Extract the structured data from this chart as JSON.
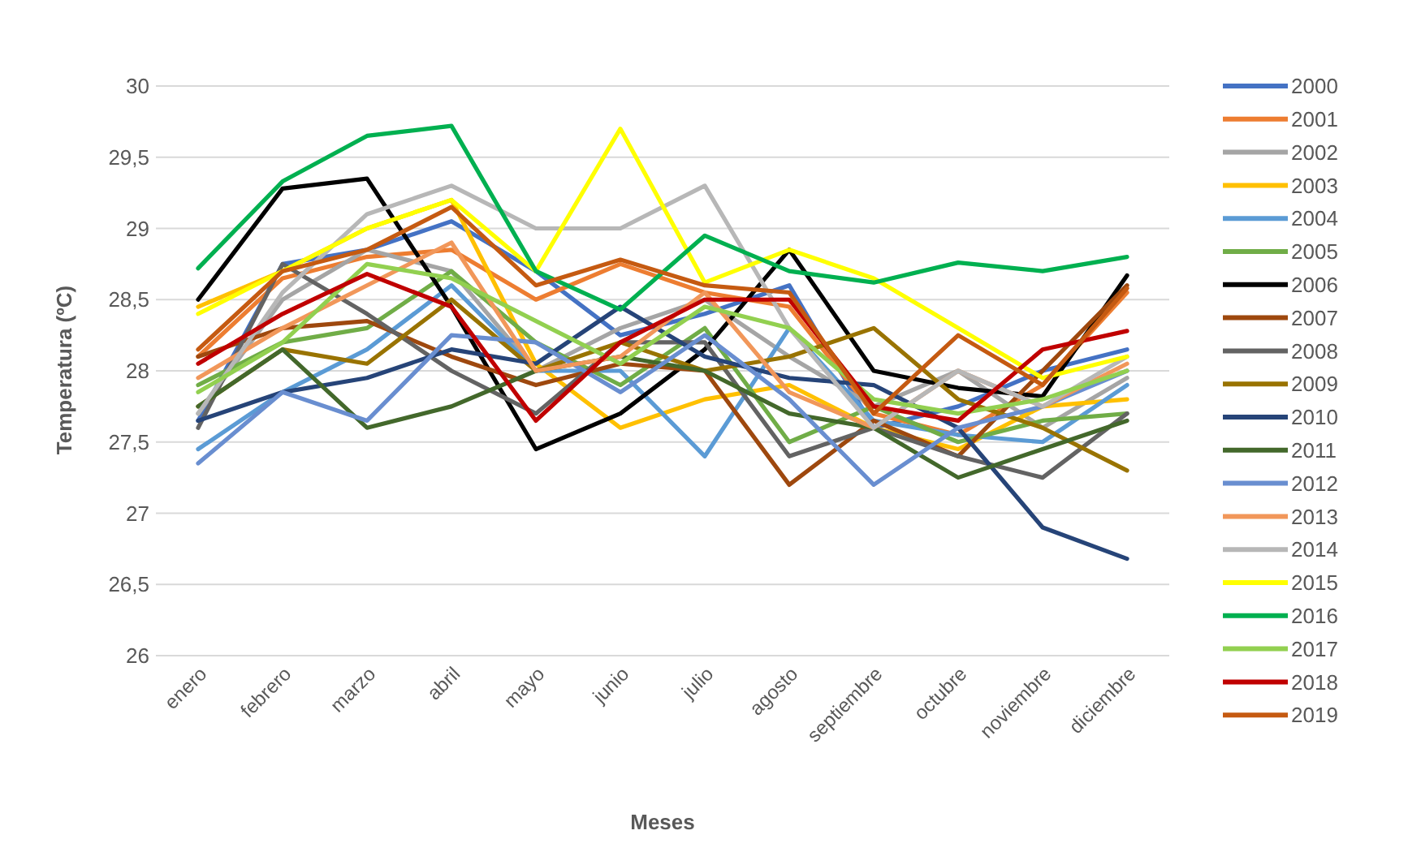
{
  "chart_data": {
    "type": "line",
    "xlabel": "Meses",
    "ylabel": "Temperatura (ºC)",
    "categories": [
      "enero",
      "febrero",
      "marzo",
      "abril",
      "mayo",
      "junio",
      "julio",
      "agosto",
      "septiembre",
      "octubre",
      "noviembre",
      "diciembre"
    ],
    "ylim": [
      26,
      30
    ],
    "yticks": [
      {
        "value": 26,
        "label": "26"
      },
      {
        "value": 26.5,
        "label": "26,5"
      },
      {
        "value": 27,
        "label": "27"
      },
      {
        "value": 27.5,
        "label": "27,5"
      },
      {
        "value": 28,
        "label": "28"
      },
      {
        "value": 28.5,
        "label": "28,5"
      },
      {
        "value": 29,
        "label": "29"
      },
      {
        "value": 29.5,
        "label": "29,5"
      },
      {
        "value": 30,
        "label": "30"
      }
    ],
    "grid": "y",
    "legend": "right",
    "marker": "none",
    "line_style": "solid",
    "series": [
      {
        "name": "2000",
        "color": "#4472c4",
        "values": [
          27.65,
          28.75,
          28.85,
          29.05,
          28.7,
          28.25,
          28.4,
          28.6,
          27.6,
          27.75,
          28.0,
          28.15
        ]
      },
      {
        "name": "2001",
        "color": "#ed7d31",
        "values": [
          28.1,
          28.65,
          28.8,
          28.85,
          28.5,
          28.75,
          28.55,
          28.45,
          27.7,
          27.55,
          27.9,
          28.55
        ]
      },
      {
        "name": "2002",
        "color": "#a5a5a5",
        "values": [
          27.7,
          28.5,
          28.85,
          28.7,
          28.0,
          28.3,
          28.5,
          28.1,
          27.75,
          28.0,
          27.6,
          27.95
        ]
      },
      {
        "name": "2003",
        "color": "#ffc000",
        "values": [
          28.45,
          28.7,
          29.0,
          29.2,
          28.05,
          27.6,
          27.8,
          27.9,
          27.6,
          27.45,
          27.75,
          27.8
        ]
      },
      {
        "name": "2004",
        "color": "#5b9bd5",
        "values": [
          27.45,
          27.85,
          28.15,
          28.6,
          28.0,
          28.0,
          27.4,
          28.3,
          27.65,
          27.55,
          27.5,
          27.9
        ]
      },
      {
        "name": "2005",
        "color": "#70ad47",
        "values": [
          27.9,
          28.2,
          28.3,
          28.7,
          28.2,
          27.9,
          28.3,
          27.5,
          27.75,
          27.5,
          27.65,
          27.7
        ]
      },
      {
        "name": "2006",
        "color": "#000000",
        "values": [
          28.5,
          29.28,
          29.35,
          28.45,
          27.45,
          27.7,
          28.15,
          28.85,
          28.0,
          27.88,
          27.82,
          28.67
        ]
      },
      {
        "name": "2007",
        "color": "#9e480e",
        "values": [
          28.1,
          28.3,
          28.35,
          28.1,
          27.9,
          28.05,
          28.0,
          27.2,
          27.65,
          27.4,
          28.0,
          28.6
        ]
      },
      {
        "name": "2008",
        "color": "#636363",
        "values": [
          27.6,
          28.75,
          28.4,
          28.0,
          27.7,
          28.2,
          28.2,
          27.4,
          27.6,
          27.4,
          27.25,
          27.7
        ]
      },
      {
        "name": "2009",
        "color": "#997300",
        "values": [
          27.75,
          28.15,
          28.05,
          28.5,
          28.0,
          28.2,
          28.0,
          28.1,
          28.3,
          27.8,
          27.6,
          27.3
        ]
      },
      {
        "name": "2010",
        "color": "#264478",
        "values": [
          27.65,
          27.85,
          27.95,
          28.15,
          28.05,
          28.45,
          28.1,
          27.95,
          27.9,
          27.6,
          26.9,
          26.68
        ]
      },
      {
        "name": "2011",
        "color": "#43682b",
        "values": [
          27.75,
          28.15,
          27.6,
          27.75,
          28.0,
          28.1,
          28.0,
          27.7,
          27.6,
          27.25,
          27.45,
          27.65
        ]
      },
      {
        "name": "2012",
        "color": "#698ed0",
        "values": [
          27.35,
          27.85,
          27.65,
          28.25,
          28.2,
          27.85,
          28.25,
          27.8,
          27.2,
          27.6,
          27.75,
          28.0
        ]
      },
      {
        "name": "2013",
        "color": "#f1975a",
        "values": [
          27.95,
          28.3,
          28.6,
          28.9,
          28.0,
          28.1,
          28.55,
          27.85,
          27.6,
          28.0,
          27.75,
          28.05
        ]
      },
      {
        "name": "2014",
        "color": "#b7b7b7",
        "values": [
          27.7,
          28.55,
          29.1,
          29.3,
          29.0,
          29.0,
          29.3,
          28.3,
          27.6,
          28.0,
          27.75,
          28.1
        ]
      },
      {
        "name": "2015",
        "color": "#ffff00",
        "values": [
          28.4,
          28.7,
          29.0,
          29.2,
          28.7,
          29.7,
          28.62,
          28.85,
          28.65,
          28.3,
          27.95,
          28.1
        ]
      },
      {
        "name": "2016",
        "color": "#00b050",
        "values": [
          28.72,
          29.33,
          29.65,
          29.72,
          28.7,
          28.43,
          28.95,
          28.7,
          28.62,
          28.76,
          28.7,
          28.8
        ]
      },
      {
        "name": "2017",
        "color": "#92d050",
        "values": [
          27.85,
          28.2,
          28.75,
          28.65,
          28.35,
          28.05,
          28.45,
          28.3,
          27.8,
          27.7,
          27.8,
          28.0
        ]
      },
      {
        "name": "2018",
        "color": "#c00000",
        "values": [
          28.05,
          28.4,
          28.68,
          28.45,
          27.65,
          28.2,
          28.5,
          28.5,
          27.75,
          27.65,
          28.15,
          28.28
        ]
      },
      {
        "name": "2019",
        "color": "#c55a11",
        "values": [
          28.15,
          28.7,
          28.85,
          29.15,
          28.6,
          28.78,
          28.6,
          28.55,
          27.7,
          28.25,
          27.9,
          28.58
        ]
      }
    ]
  }
}
